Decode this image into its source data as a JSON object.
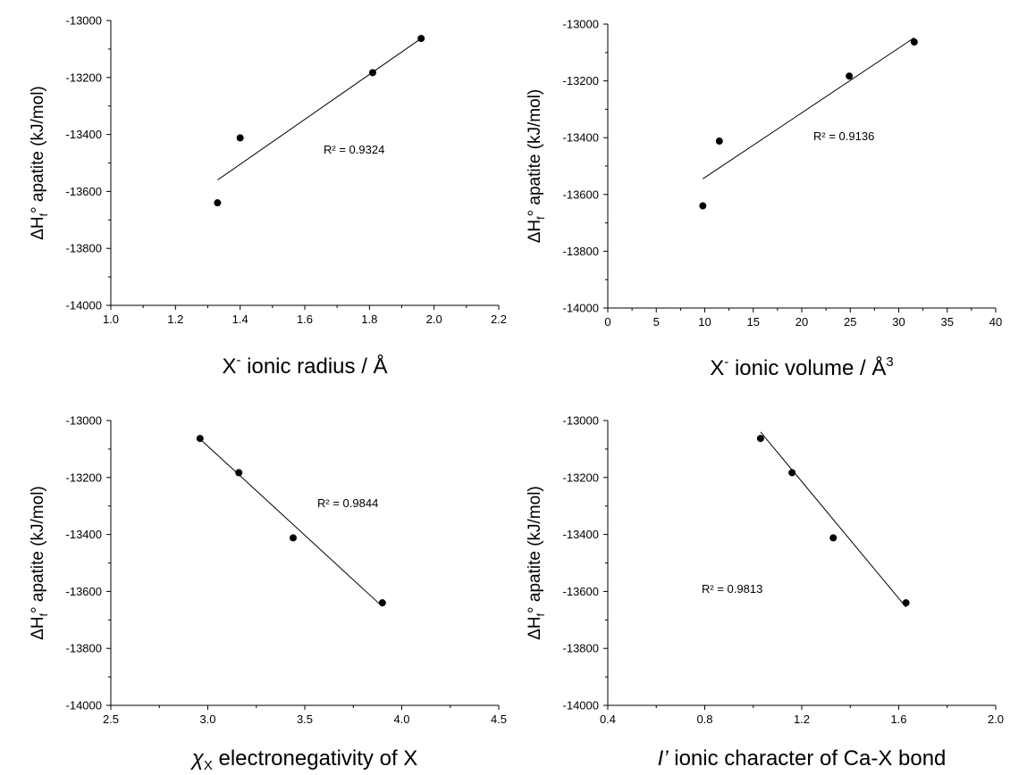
{
  "chart_data": [
    {
      "type": "scatter",
      "x": [
        1.33,
        1.4,
        1.81,
        1.96
      ],
      "y": [
        -13640,
        -13412,
        -13183,
        -13063
      ],
      "fit": {
        "x": [
          1.33,
          1.96
        ],
        "y": [
          -13560,
          -13063
        ]
      },
      "annotation": "R² = 0.9324",
      "ylabel": {
        "main": "ΔH",
        "sub": "f",
        "rest": "° apatite (kJ/mol)"
      },
      "xlabel": {
        "main": "X",
        "sup": "-",
        "rest": " ionic radius / Å"
      },
      "xlim": [
        1.0,
        2.2
      ],
      "ylim": [
        -14000,
        -13000
      ],
      "xticks": [
        "1.0",
        "1.2",
        "1.4",
        "1.6",
        "1.8",
        "2.0",
        "2.2"
      ],
      "yticks": [
        "-13000",
        "-13200",
        "-13400",
        "-13600",
        "-13800",
        "-14000"
      ]
    },
    {
      "type": "scatter",
      "x": [
        9.8,
        11.5,
        24.9,
        31.6
      ],
      "y": [
        -13640,
        -13412,
        -13183,
        -13063
      ],
      "fit": {
        "x": [
          9.8,
          31.6
        ],
        "y": [
          -13545,
          -13048
        ]
      },
      "annotation": "R² = 0.9136",
      "ylabel": {
        "main": "ΔH",
        "sub": "f",
        "rest": "° apatite (kJ/mol)"
      },
      "xlabel": {
        "main": "X",
        "sup": "-",
        "rest": " ionic volume / Å",
        "sup2": "3"
      },
      "xlim": [
        0,
        40
      ],
      "ylim": [
        -14000,
        -13000
      ],
      "xticks": [
        "0",
        "5",
        "10",
        "15",
        "20",
        "25",
        "30",
        "35",
        "40"
      ],
      "yticks": [
        "-13000",
        "-13200",
        "-13400",
        "-13600",
        "-13800",
        "-14000"
      ]
    },
    {
      "type": "scatter",
      "x": [
        2.96,
        3.16,
        3.44,
        3.9
      ],
      "y": [
        -13063,
        -13183,
        -13412,
        -13640
      ],
      "fit": {
        "x": [
          2.96,
          3.9
        ],
        "y": [
          -13065,
          -13653
        ]
      },
      "annotation": "R² = 0.9844",
      "ylabel": {
        "main": "ΔH",
        "sub": "f",
        "rest": "° apatite (kJ/mol)"
      },
      "xlabel": {
        "main": "χ",
        "sub": "X",
        "rest": " electronegativity of X"
      },
      "xlim": [
        2.5,
        4.5
      ],
      "ylim": [
        -14000,
        -13000
      ],
      "xticks": [
        "2.5",
        "3.0",
        "3.5",
        "4.0",
        "4.5"
      ],
      "yticks": [
        "-13000",
        "-13200",
        "-13400",
        "-13600",
        "-13800",
        "-14000"
      ]
    },
    {
      "type": "scatter",
      "x": [
        1.03,
        1.16,
        1.33,
        1.63
      ],
      "y": [
        -13063,
        -13183,
        -13412,
        -13640
      ],
      "fit": {
        "x": [
          1.03,
          1.63
        ],
        "y": [
          -13040,
          -13655
        ]
      },
      "annotation": "R² = 0.9813",
      "ylabel": {
        "main": "ΔH",
        "sub": "f",
        "rest": "° apatite (kJ/mol)"
      },
      "xlabel": {
        "main": "I’",
        "rest": " ionic character of Ca-X bond"
      },
      "xlim": [
        0.4,
        2.0
      ],
      "ylim": [
        -14000,
        -13000
      ],
      "xticks": [
        "0.4",
        "0.8",
        "1.2",
        "1.6",
        "2.0"
      ],
      "yticks": [
        "-13000",
        "-13200",
        "-13400",
        "-13600",
        "-13800",
        "-14000"
      ]
    }
  ]
}
